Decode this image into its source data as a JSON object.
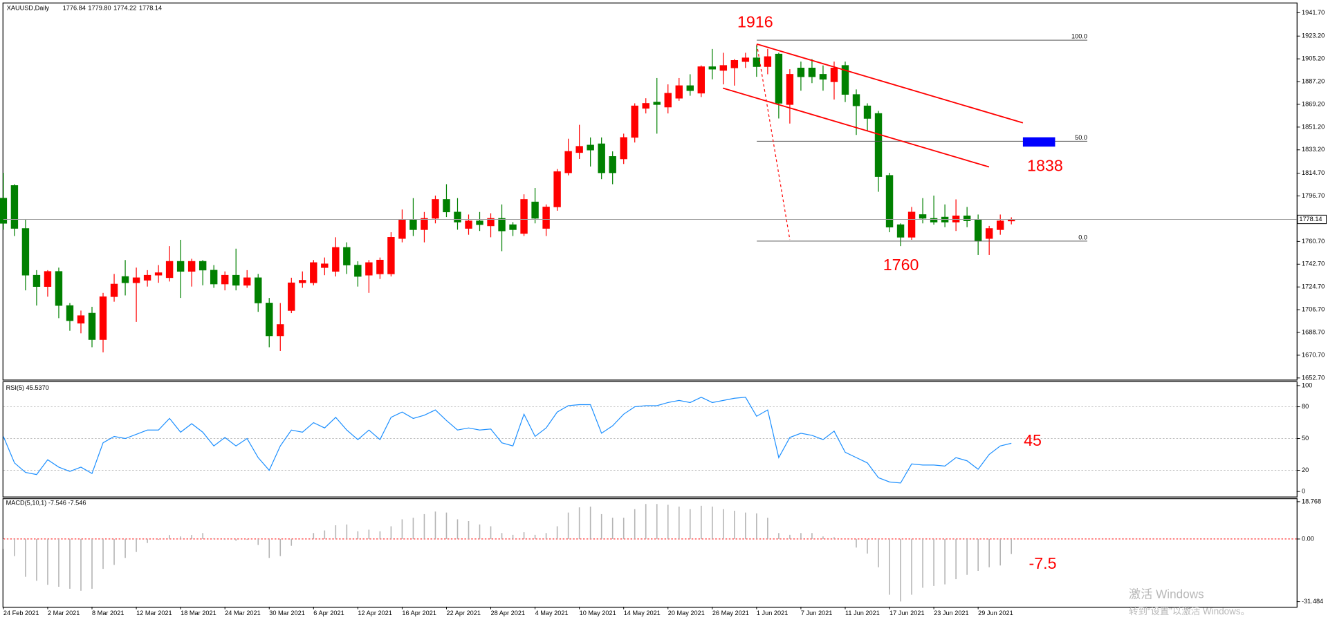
{
  "chart_data": [
    {
      "type": "candlestick",
      "title": "XAUUSD,Daily",
      "quote_labels": [
        "1776.84",
        "1779.80",
        "1774.22",
        "1778.14"
      ],
      "categories": [
        "24 Feb 2021",
        null,
        null,
        null,
        "2 Mar 2021",
        null,
        null,
        null,
        "8 Mar 2021",
        null,
        null,
        null,
        "12 Mar 2021",
        null,
        null,
        null,
        "18 Mar 2021",
        null,
        null,
        null,
        "24 Mar 2021",
        null,
        null,
        null,
        "30 Mar 2021",
        null,
        null,
        null,
        "6 Apr 2021",
        null,
        null,
        null,
        "12 Apr 2021",
        null,
        null,
        null,
        "16 Apr 2021",
        null,
        null,
        null,
        "22 Apr 2021",
        null,
        null,
        null,
        "28 Apr 2021",
        null,
        null,
        null,
        "4 May 2021",
        null,
        null,
        null,
        "10 May 2021",
        null,
        null,
        null,
        "14 May 2021",
        null,
        null,
        null,
        "20 May 2021",
        null,
        null,
        null,
        "26 May 2021",
        null,
        null,
        null,
        "1 Jun 2021",
        null,
        null,
        null,
        "7 Jun 2021",
        null,
        null,
        null,
        "11 Jun 2021",
        null,
        null,
        null,
        "17 Jun 2021",
        null,
        null,
        null,
        "23 Jun 2021",
        null,
        null,
        null,
        "29 Jun 2021",
        null,
        null,
        null
      ],
      "open": [
        1795,
        1805,
        1771,
        1734,
        1725,
        1737,
        1710,
        1696,
        1704,
        1683,
        1717,
        1733,
        1728,
        1730,
        1734,
        1732,
        1745,
        1737,
        1745,
        1738,
        1727,
        1734,
        1726,
        1732,
        1712,
        1686,
        1706,
        1728,
        1728,
        1740,
        1737,
        1756,
        1742,
        1734,
        1735,
        1735,
        1763,
        1778,
        1770,
        1779,
        1794,
        1784,
        1771,
        1777,
        1773,
        1779,
        1774,
        1767,
        1792,
        1771,
        1788,
        1815,
        1831,
        1837,
        1838,
        1828,
        1826,
        1843,
        1866,
        1871,
        1867,
        1874,
        1884,
        1878,
        1899,
        1896,
        1898,
        1903,
        1906,
        1899,
        1909,
        1869,
        1898,
        1898,
        1893,
        1887,
        1900,
        1877,
        1868,
        1862,
        1813,
        1774,
        1764,
        1782,
        1779,
        1780,
        1776,
        1781,
        1778,
        1763,
        1770,
        1776.84
      ],
      "high": [
        1815,
        1806,
        1778,
        1738,
        1738,
        1740,
        1712,
        1706,
        1709,
        1720,
        1735,
        1746,
        1740,
        1738,
        1742,
        1757,
        1762,
        1747,
        1746,
        1742,
        1737,
        1755,
        1738,
        1735,
        1716,
        1712,
        1732,
        1737,
        1746,
        1748,
        1764,
        1760,
        1745,
        1746,
        1748,
        1768,
        1786,
        1795,
        1784,
        1797,
        1806,
        1795,
        1782,
        1784,
        1783,
        1790,
        1776,
        1798,
        1803,
        1790,
        1818,
        1842,
        1853,
        1843,
        1843,
        1832,
        1846,
        1870,
        1874,
        1890,
        1885,
        1890,
        1893,
        1900,
        1913,
        1910,
        1905,
        1910,
        1916,
        1913,
        1910,
        1897,
        1903,
        1905,
        1900,
        1903,
        1903,
        1881,
        1870,
        1864,
        1815,
        1775,
        1788,
        1795,
        1797,
        1790,
        1794,
        1788,
        1782,
        1773,
        1782,
        1779.8
      ],
      "low": [
        1770,
        1765,
        1722,
        1710,
        1717,
        1700,
        1690,
        1688,
        1677,
        1673,
        1713,
        1718,
        1697,
        1725,
        1728,
        1729,
        1716,
        1725,
        1726,
        1724,
        1722,
        1722,
        1724,
        1705,
        1677,
        1674,
        1704,
        1724,
        1726,
        1734,
        1733,
        1735,
        1725,
        1720,
        1731,
        1733,
        1760,
        1765,
        1760,
        1775,
        1780,
        1770,
        1766,
        1769,
        1764,
        1753,
        1765,
        1765,
        1775,
        1765,
        1785,
        1813,
        1826,
        1820,
        1810,
        1806,
        1822,
        1839,
        1862,
        1846,
        1862,
        1872,
        1876,
        1875,
        1889,
        1885,
        1884,
        1898,
        1891,
        1893,
        1858,
        1854,
        1880,
        1886,
        1880,
        1873,
        1871,
        1845,
        1848,
        1800,
        1768,
        1757,
        1762,
        1775,
        1774,
        1772,
        1769,
        1772,
        1750,
        1750,
        1766,
        1774.22
      ],
      "close": [
        1775,
        1771,
        1734,
        1725,
        1737,
        1710,
        1698,
        1702,
        1683,
        1717,
        1727,
        1728,
        1732,
        1734,
        1736,
        1745,
        1737,
        1745,
        1738,
        1727,
        1734,
        1726,
        1732,
        1712,
        1686,
        1695,
        1728,
        1730,
        1744,
        1743,
        1756,
        1742,
        1733,
        1744,
        1746,
        1764,
        1778,
        1770,
        1779,
        1794,
        1784,
        1776,
        1777,
        1774,
        1779,
        1769,
        1770,
        1794,
        1779,
        1788,
        1816,
        1832,
        1836,
        1833,
        1815,
        1815,
        1843,
        1868,
        1870,
        1869,
        1878,
        1884,
        1880,
        1899,
        1897,
        1900,
        1904,
        1906,
        1899,
        1907,
        1870,
        1893,
        1891,
        1891,
        1889,
        1898,
        1877,
        1868,
        1858,
        1812,
        1772,
        1764,
        1784,
        1779,
        1776,
        1776,
        1781,
        1777,
        1761,
        1771,
        1777,
        1778.14
      ],
      "up_color": "#ff0000",
      "down_color": "#008000",
      "ylim": [
        1652.7,
        1941.7
      ],
      "yticks": [
        {
          "value": 1941.7,
          "label": "1941.70"
        },
        {
          "value": 1923.2,
          "label": "1923.20"
        },
        {
          "value": 1905.2,
          "label": "1905.20"
        },
        {
          "value": 1887.2,
          "label": "1887.20"
        },
        {
          "value": 1869.2,
          "label": "1869.20"
        },
        {
          "value": 1851.2,
          "label": "1851.20"
        },
        {
          "value": 1833.2,
          "label": "1833.20"
        },
        {
          "value": 1814.7,
          "label": "1814.70"
        },
        {
          "value": 1796.7,
          "label": "1796.70"
        },
        {
          "value": 1760.7,
          "label": "1760.70"
        },
        {
          "value": 1742.7,
          "label": "1742.70"
        },
        {
          "value": 1724.7,
          "label": "1724.70"
        },
        {
          "value": 1706.7,
          "label": "1706.70"
        },
        {
          "value": 1688.7,
          "label": "1688.70"
        },
        {
          "value": 1670.7,
          "label": "1670.70"
        },
        {
          "value": 1652.7,
          "label": "1652.70"
        }
      ],
      "current_price": {
        "value": 1778.14,
        "label": "1778.14"
      },
      "fib_levels": [
        {
          "value": 1920,
          "label": "100.0"
        },
        {
          "value": 1840,
          "label": "50.0"
        },
        {
          "value": 1761,
          "label": "0.0"
        }
      ],
      "annotations": [
        "1916",
        "1838",
        "1760"
      ]
    },
    {
      "type": "line",
      "title": "RSI(5) 45.5370",
      "values": [
        52,
        27,
        18,
        16,
        30,
        23,
        19,
        23,
        17,
        46,
        52,
        50,
        54,
        58,
        58,
        69,
        56,
        64,
        56,
        43,
        51,
        43,
        50,
        32,
        20,
        43,
        58,
        56,
        65,
        60,
        70,
        58,
        49,
        58,
        49,
        70,
        75,
        69,
        72,
        77,
        67,
        58,
        60,
        58,
        59,
        46,
        43,
        73,
        52,
        60,
        75,
        81,
        82,
        82,
        55,
        62,
        73,
        80,
        81,
        81,
        84,
        86,
        84,
        89,
        84,
        86,
        88,
        89,
        71,
        77,
        32,
        51,
        55,
        53,
        49,
        57,
        37,
        32,
        27,
        13,
        9,
        8,
        26,
        25,
        25,
        24,
        32,
        29,
        21,
        35,
        43,
        45.537
      ],
      "color": "#1e90ff",
      "ylim": [
        0,
        100
      ],
      "yticks": [
        0,
        20,
        50,
        80,
        100
      ],
      "levels": [
        20,
        50,
        80
      ],
      "level_color": "#c0c0c0",
      "annotations": [
        "45"
      ]
    },
    {
      "type": "bar",
      "title": "MACD(5,10,1) -7.546 -7.546",
      "values": [
        -5,
        -8.6,
        -19,
        -21,
        -23,
        -24,
        -25,
        -26,
        -25,
        -15,
        -13,
        -9.5,
        -6.5,
        -2,
        -0.4,
        2,
        1.3,
        2,
        3,
        0.4,
        -0.4,
        -0.9,
        -0.4,
        -3,
        -9.5,
        -8.6,
        -3.4,
        0,
        3,
        4.3,
        6.9,
        7.3,
        3.9,
        4.7,
        3.9,
        6.4,
        9.9,
        10.7,
        12.5,
        13.8,
        13.3,
        9.9,
        9,
        7.3,
        6.4,
        3,
        2.1,
        3.4,
        2.1,
        3,
        6.4,
        13.3,
        15.9,
        16.3,
        12.5,
        10.7,
        10.7,
        15,
        17.6,
        17.6,
        17.2,
        16.3,
        15,
        16.7,
        16.3,
        15,
        14.2,
        13.3,
        12.9,
        10.7,
        3,
        2.1,
        3,
        3,
        1.3,
        0.9,
        0,
        -4.3,
        -7.3,
        -14.2,
        -28,
        -31.4,
        -28,
        -24.5,
        -23.6,
        -22.8,
        -20.2,
        -18,
        -16,
        -14.2,
        -13.3,
        -7.546
      ],
      "color": "#b4b4b4",
      "ylim": [
        -31.484,
        18.768
      ],
      "yticks": [
        18.768,
        {
          "value": 0,
          "label": "0.00"
        },
        -31.484
      ],
      "levels": [
        0
      ],
      "level_color": "#ff0000",
      "annotations": [
        "-7.5"
      ]
    }
  ],
  "watermark": {
    "title": "激活 Windows",
    "hint": "转到“设置”以激活 Windows。"
  }
}
